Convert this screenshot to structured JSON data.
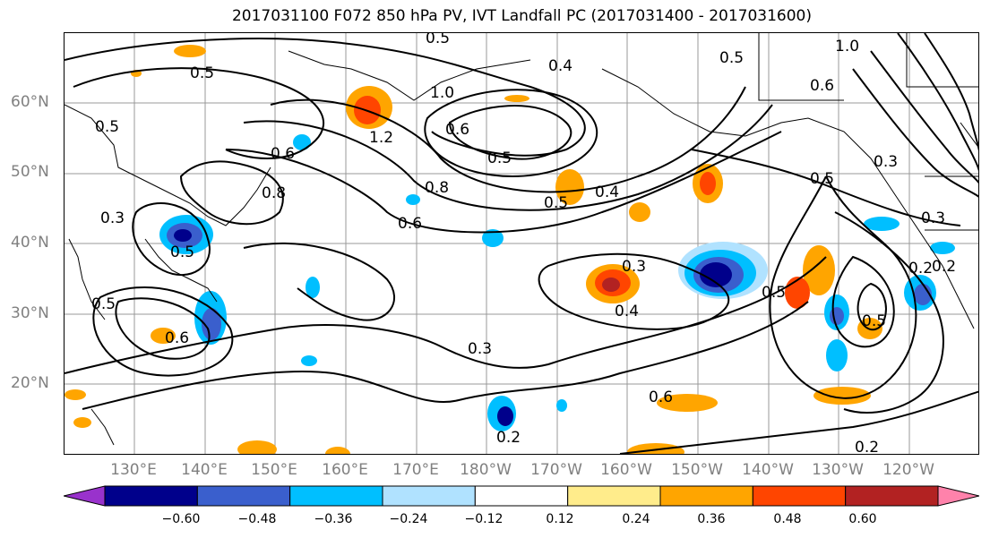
{
  "title": "2017031100 F072 850 hPa PV, IVT Landfall PC (2017031400 - 2017031600)",
  "latitude_labels": [
    "60°N",
    "50°N",
    "40°N",
    "30°N",
    "20°N"
  ],
  "longitude_labels": [
    "130°E",
    "140°E",
    "150°E",
    "160°E",
    "170°E",
    "180°W",
    "170°W",
    "160°W",
    "150°W",
    "140°W",
    "130°W",
    "120°W"
  ],
  "colorbar": {
    "ticks": [
      "−0.60",
      "−0.48",
      "−0.36",
      "−0.24",
      "−0.12",
      "0.12",
      "0.24",
      "0.36",
      "0.48",
      "0.60"
    ],
    "colors": [
      "#9932cc",
      "#00008b",
      "#3a5fcd",
      "#00bfff",
      "#b0e2ff",
      "#ffffff",
      "#ffec8b",
      "#ffa500",
      "#ff4500",
      "#b22222",
      "#ff82ab"
    ]
  },
  "contour_labels": [
    "0.5",
    "0.4",
    "0.5",
    "1.0",
    "0.6",
    "1.2",
    "0.6",
    "0.5",
    "0.8",
    "0.5",
    "0.4",
    "0.6",
    "0.8",
    "0.3",
    "0.5",
    "0.6",
    "0.3",
    "0.5",
    "0.2",
    "0.3",
    "0.4",
    "0.3",
    "0.2",
    "0.2",
    "0.5",
    "0.5",
    "0.6",
    "1.0",
    "0.5",
    "0.3",
    "0.2",
    "0.5",
    "0.5",
    "0.6"
  ],
  "fill_colors": {
    "neg_light": "#b0e2ff",
    "neg_mid": "#00bfff",
    "neg_blue": "#3a5fcd",
    "neg_navy": "#00008b",
    "pos_yellow": "#ffec8b",
    "pos_orange": "#ffa500",
    "pos_red": "#ff4500",
    "pos_dark": "#b22222"
  }
}
